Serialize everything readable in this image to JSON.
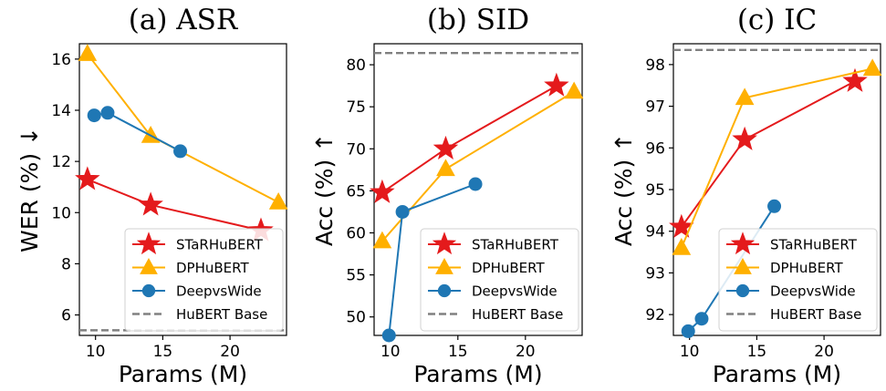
{
  "chart_data": [
    {
      "type": "line",
      "title": "(a) ASR",
      "xlabel": "Params (M)",
      "ylabel": "WER (%) ↓",
      "xlim": [
        8.8,
        24.2
      ],
      "ylim": [
        5.2,
        16.6
      ],
      "xticks": [
        10,
        15,
        20
      ],
      "yticks": [
        6,
        8,
        10,
        12,
        14,
        16
      ],
      "grid": false,
      "legend": "bottom-right",
      "series": [
        {
          "name": "STaRHuBERT",
          "color": "#e41a1c",
          "marker": "star",
          "x": [
            9.4,
            14.1,
            22.3
          ],
          "y": [
            11.3,
            10.3,
            9.3
          ]
        },
        {
          "name": "DPHuBERT",
          "color": "#ffb000",
          "marker": "triangle",
          "x": [
            9.4,
            14.1,
            23.6
          ],
          "y": [
            16.2,
            13.0,
            10.4
          ]
        },
        {
          "name": "DeepvsWide",
          "color": "#1f77b4",
          "marker": "circle",
          "x": [
            9.9,
            10.9,
            16.3
          ],
          "y": [
            13.8,
            13.9,
            12.4
          ]
        }
      ],
      "reference": {
        "name": "HuBERT Base",
        "color": "#808080",
        "value": 5.4
      }
    },
    {
      "type": "line",
      "title": "(b) SID",
      "xlabel": "Params (M)",
      "ylabel": "Acc (%) ↑",
      "xlim": [
        8.8,
        24.2
      ],
      "ylim": [
        47.8,
        82.5
      ],
      "xticks": [
        10,
        15,
        20
      ],
      "yticks": [
        50,
        55,
        60,
        65,
        70,
        75,
        80
      ],
      "grid": false,
      "legend": "bottom-right",
      "series": [
        {
          "name": "STaRHuBERT",
          "color": "#e41a1c",
          "marker": "star",
          "x": [
            9.4,
            14.1,
            22.3
          ],
          "y": [
            64.8,
            70.0,
            77.5
          ]
        },
        {
          "name": "DPHuBERT",
          "color": "#ffb000",
          "marker": "triangle",
          "x": [
            9.4,
            14.1,
            23.6
          ],
          "y": [
            59.0,
            67.6,
            76.8
          ]
        },
        {
          "name": "DeepvsWide",
          "color": "#1f77b4",
          "marker": "circle",
          "x": [
            9.9,
            10.9,
            16.3
          ],
          "y": [
            47.8,
            62.5,
            65.8
          ]
        }
      ],
      "reference": {
        "name": "HuBERT Base",
        "color": "#808080",
        "value": 81.4
      }
    },
    {
      "type": "line",
      "title": "(c) IC",
      "xlabel": "Params (M)",
      "ylabel": "Acc (%) ↑",
      "xlim": [
        8.8,
        24.2
      ],
      "ylim": [
        91.5,
        98.5
      ],
      "xticks": [
        10,
        15,
        20
      ],
      "yticks": [
        92,
        93,
        94,
        95,
        96,
        97,
        98
      ],
      "grid": false,
      "legend": "bottom-right",
      "series": [
        {
          "name": "STaRHuBERT",
          "color": "#e41a1c",
          "marker": "star",
          "x": [
            9.4,
            14.1,
            22.3
          ],
          "y": [
            94.1,
            96.2,
            97.6
          ]
        },
        {
          "name": "DPHuBERT",
          "color": "#ffb000",
          "marker": "triangle",
          "x": [
            9.4,
            14.1,
            23.6
          ],
          "y": [
            93.6,
            97.2,
            97.9
          ]
        },
        {
          "name": "DeepvsWide",
          "color": "#1f77b4",
          "marker": "circle",
          "x": [
            9.9,
            10.9,
            16.3
          ],
          "y": [
            91.6,
            91.9,
            94.6
          ]
        }
      ],
      "reference": {
        "name": "HuBERT Base",
        "color": "#808080",
        "value": 98.35
      }
    }
  ]
}
